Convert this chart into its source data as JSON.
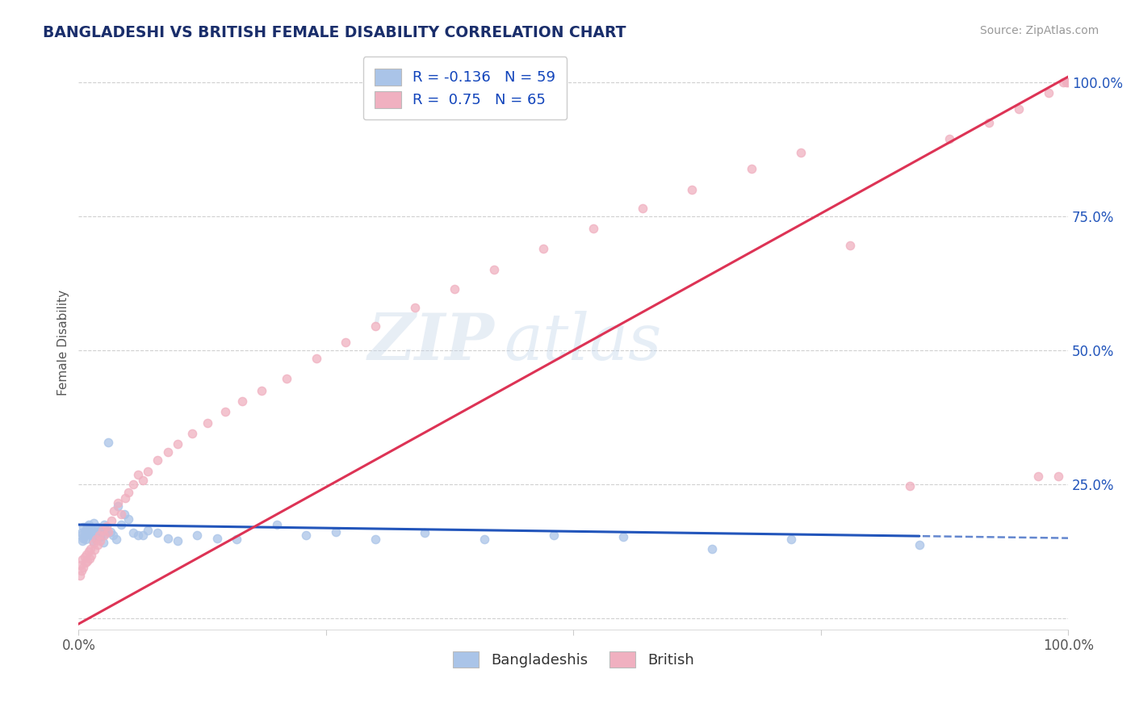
{
  "title": "BANGLADESHI VS BRITISH FEMALE DISABILITY CORRELATION CHART",
  "source": "Source: ZipAtlas.com",
  "ylabel": "Female Disability",
  "xlim": [
    0.0,
    1.0
  ],
  "ylim": [
    -0.02,
    1.05
  ],
  "yticks": [
    0.0,
    0.25,
    0.5,
    0.75,
    1.0
  ],
  "ytick_labels": [
    "",
    "25.0%",
    "50.0%",
    "75.0%",
    "100.0%"
  ],
  "xticks": [
    0.0,
    1.0
  ],
  "xtick_labels": [
    "0.0%",
    "100.0%"
  ],
  "background_color": "#ffffff",
  "grid_color": "#d0d0d0",
  "blue_color": "#aac4e8",
  "pink_color": "#f0b0c0",
  "blue_line_color": "#2255bb",
  "pink_line_color": "#dd3355",
  "title_color": "#1a2e6b",
  "source_color": "#999999",
  "watermark1": "ZIP",
  "watermark2": "atlas",
  "R1": -0.136,
  "N1": 59,
  "R2": 0.75,
  "N2": 65,
  "blue_regression": [
    -0.025,
    0.175
  ],
  "pink_regression": [
    1.02,
    -0.01
  ],
  "blue_x": [
    0.002,
    0.003,
    0.004,
    0.005,
    0.005,
    0.006,
    0.007,
    0.007,
    0.008,
    0.009,
    0.01,
    0.01,
    0.011,
    0.012,
    0.013,
    0.014,
    0.015,
    0.015,
    0.016,
    0.017,
    0.018,
    0.019,
    0.02,
    0.021,
    0.022,
    0.023,
    0.025,
    0.026,
    0.027,
    0.028,
    0.03,
    0.032,
    0.035,
    0.038,
    0.04,
    0.043,
    0.046,
    0.05,
    0.055,
    0.06,
    0.065,
    0.07,
    0.08,
    0.09,
    0.1,
    0.12,
    0.14,
    0.16,
    0.2,
    0.23,
    0.26,
    0.3,
    0.35,
    0.41,
    0.48,
    0.55,
    0.64,
    0.72,
    0.85
  ],
  "blue_y": [
    0.155,
    0.16,
    0.145,
    0.15,
    0.17,
    0.155,
    0.148,
    0.165,
    0.16,
    0.172,
    0.158,
    0.175,
    0.162,
    0.155,
    0.168,
    0.145,
    0.16,
    0.178,
    0.155,
    0.162,
    0.148,
    0.17,
    0.158,
    0.165,
    0.152,
    0.168,
    0.142,
    0.175,
    0.158,
    0.165,
    0.328,
    0.162,
    0.155,
    0.148,
    0.21,
    0.175,
    0.195,
    0.185,
    0.16,
    0.155,
    0.155,
    0.165,
    0.16,
    0.15,
    0.145,
    0.155,
    0.15,
    0.148,
    0.175,
    0.155,
    0.162,
    0.148,
    0.16,
    0.148,
    0.155,
    0.152,
    0.13,
    0.148,
    0.138
  ],
  "pink_x": [
    0.001,
    0.002,
    0.003,
    0.004,
    0.005,
    0.006,
    0.007,
    0.008,
    0.009,
    0.01,
    0.011,
    0.012,
    0.013,
    0.015,
    0.016,
    0.018,
    0.019,
    0.021,
    0.022,
    0.024,
    0.026,
    0.028,
    0.03,
    0.033,
    0.036,
    0.04,
    0.043,
    0.047,
    0.05,
    0.055,
    0.06,
    0.065,
    0.07,
    0.08,
    0.09,
    0.1,
    0.115,
    0.13,
    0.148,
    0.165,
    0.185,
    0.21,
    0.24,
    0.27,
    0.3,
    0.34,
    0.38,
    0.42,
    0.47,
    0.52,
    0.57,
    0.62,
    0.68,
    0.73,
    0.78,
    0.84,
    0.88,
    0.92,
    0.95,
    0.97,
    0.98,
    0.99,
    0.995,
    0.998,
    1.0
  ],
  "pink_y": [
    0.08,
    0.1,
    0.09,
    0.11,
    0.095,
    0.115,
    0.105,
    0.12,
    0.108,
    0.125,
    0.112,
    0.13,
    0.118,
    0.14,
    0.128,
    0.148,
    0.138,
    0.155,
    0.145,
    0.165,
    0.155,
    0.172,
    0.162,
    0.182,
    0.2,
    0.215,
    0.195,
    0.225,
    0.235,
    0.25,
    0.268,
    0.258,
    0.275,
    0.295,
    0.31,
    0.325,
    0.345,
    0.365,
    0.385,
    0.405,
    0.425,
    0.448,
    0.485,
    0.515,
    0.545,
    0.58,
    0.615,
    0.65,
    0.69,
    0.728,
    0.765,
    0.8,
    0.838,
    0.868,
    0.695,
    0.248,
    0.895,
    0.925,
    0.95,
    0.265,
    0.98,
    0.265,
    1.0,
    1.0,
    1.0
  ]
}
